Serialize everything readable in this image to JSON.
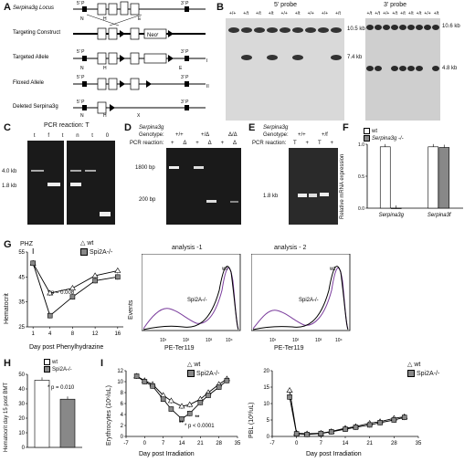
{
  "panels": {
    "A": {
      "label": "A",
      "rows": [
        {
          "name": "Serpina3g Locus",
          "five": "5' P",
          "three": "3' P"
        },
        {
          "name": "Targeting Construct"
        },
        {
          "name": "Targeted Allele",
          "five": "5' P",
          "three": "3' P"
        },
        {
          "name": "Floxed Allele",
          "five": "5' P",
          "three": "3' P"
        },
        {
          "name": "Deleted Serpina3g",
          "five": "5' P",
          "three": "3' P"
        }
      ],
      "neo": "Neoʳ",
      "site_N": "N",
      "site_E": "E",
      "site_H": "H",
      "site_X": "X",
      "roman_I": "I",
      "roman_II": "II"
    },
    "B": {
      "label": "B",
      "probe5": "5' probe",
      "probe3": "3' probe",
      "lanes5": [
        "+/+",
        "+/t",
        "+/t",
        "+/t",
        "+/+",
        "+/t",
        "+/+",
        "+/+",
        "+/t"
      ],
      "lanes3": [
        "+/t",
        "+/t",
        "+/+",
        "+/t",
        "+/t",
        "+/t",
        "+/t",
        "+/+",
        "+/t"
      ],
      "size_a": "10.5 kb",
      "size_b": "7.4 kb",
      "size_c": "10.6 kb",
      "size_d": "4.8 kb"
    },
    "C": {
      "label": "C",
      "title": "PCR reaction: T",
      "lanes": [
        "t",
        "f",
        "t",
        "n",
        "t",
        "0"
      ],
      "m1": "4.0 kb",
      "m2": "1.8 kb"
    },
    "D": {
      "label": "D",
      "gene": "Serpina3g",
      "genotype_label": "Genotype:",
      "genotypes": [
        "+/+",
        "+/Δ",
        "Δ/Δ"
      ],
      "pcr_label": "PCR reaction:",
      "reactions": [
        "+",
        "Δ",
        "+",
        "Δ",
        "+",
        "Δ"
      ],
      "m1": "1800 bp",
      "m2": "200 bp"
    },
    "E": {
      "label": "E",
      "gene": "Serpina3g",
      "genotype_label": "Genotype:",
      "genotypes": [
        "+/+",
        "+/f"
      ],
      "pcr_label": "PCR reaction:",
      "reactions": [
        "T",
        "+",
        "T",
        "+"
      ],
      "m1": "1.8 kb"
    },
    "F": {
      "label": "F",
      "legend": [
        "wt",
        "Serpina3g -/-"
      ],
      "ylabel": "Relative mRNA expression",
      "xcats": [
        "Serpina3g",
        "Serpina3f"
      ]
    },
    "G": {
      "label": "G",
      "phz": "PHZ",
      "legend": [
        "wt",
        "Spi2A-/-"
      ],
      "ylabel": "Hematocrit",
      "xlabel": "Day post Phenylhydrazine",
      "pval": "* p = 0.008",
      "flow_titles": [
        "analysis -1",
        "analysis - 2"
      ],
      "flow_ylabel": "Events",
      "flow_xlabel": "PE-Ter119",
      "flow_wt": "wt",
      "flow_ko": "Spi2A-/-"
    },
    "H": {
      "label": "H",
      "legend": [
        "wt",
        "Spi2A-/-"
      ],
      "ylabel": "Hematocrit day 15 post BMT",
      "pval": "* p = 0.010"
    },
    "I": {
      "label": "I",
      "legend": [
        "wt",
        "Spi2A-/-"
      ],
      "ylabel1": "Erythrocytes (10⁶/uL)",
      "ylabel2": "PBL (10³/uL)",
      "xlabel": "Day post Irradiation",
      "pval": "* p < 0.0001",
      "stars": "**"
    }
  },
  "chart_data": [
    {
      "type": "bar",
      "panel": "F",
      "categories": [
        "Serpina3g",
        "Serpina3f"
      ],
      "series": [
        {
          "name": "wt",
          "values": [
            0.96,
            0.96
          ]
        },
        {
          "name": "Serpina3g -/-",
          "values": [
            0.0,
            0.95
          ]
        }
      ],
      "ylabel": "Relative mRNA expression",
      "ylim": [
        0,
        1.0
      ],
      "yticks": [
        0.0,
        0.5,
        1.0
      ]
    },
    {
      "type": "line",
      "panel": "G",
      "x": [
        1,
        4,
        8,
        12,
        16
      ],
      "series": [
        {
          "name": "wt",
          "values": [
            50.5,
            38.5,
            40.5,
            45.5,
            47.5
          ]
        },
        {
          "name": "Spi2A-/-",
          "values": [
            50.5,
            29.5,
            37.0,
            43.5,
            45.0
          ]
        }
      ],
      "xlabel": "Day post Phenylhydrazine",
      "ylabel": "Hematocrit",
      "xticks": [
        1,
        4,
        8,
        12,
        16
      ],
      "yticks": [
        25,
        35,
        45,
        55
      ],
      "ylim": [
        25,
        55
      ],
      "xlim": [
        0,
        17
      ]
    },
    {
      "type": "bar",
      "panel": "H",
      "categories": [
        "wt",
        "Spi2A-/-"
      ],
      "values": [
        46,
        33
      ],
      "ylabel": "Hematocrit day 15 post BMT",
      "ylim": [
        0,
        50
      ],
      "yticks": [
        0,
        10,
        20,
        30,
        40,
        50
      ]
    },
    {
      "type": "line",
      "panel": "I-erythrocytes",
      "x": [
        -3,
        0,
        3,
        7,
        10,
        14,
        17,
        21,
        24,
        28,
        31
      ],
      "series": [
        {
          "name": "wt",
          "values": [
            11,
            10.2,
            9.5,
            7.5,
            6.5,
            5.5,
            5.8,
            6.8,
            8.0,
            9.5,
            10.5
          ]
        },
        {
          "name": "Spi2A-/-",
          "values": [
            11,
            10.0,
            9.2,
            6.8,
            5.0,
            3.2,
            4.2,
            6.2,
            7.5,
            9.0,
            10.2
          ]
        }
      ],
      "xlabel": "Day post Irradiation",
      "ylabel": "Erythrocytes (10⁶/uL)",
      "xticks": [
        -7,
        0,
        7,
        14,
        21,
        28,
        35
      ],
      "yticks": [
        0,
        2,
        4,
        6,
        8,
        10,
        12
      ],
      "ylim": [
        0,
        12
      ],
      "xlim": [
        -7,
        35
      ]
    },
    {
      "type": "line",
      "panel": "I-PBL",
      "x": [
        -2,
        0,
        3,
        7,
        10,
        14,
        17,
        21,
        24,
        28,
        31
      ],
      "series": [
        {
          "name": "wt",
          "values": [
            14,
            1.0,
            0.8,
            1.0,
            1.5,
            2.5,
            3.0,
            4.0,
            4.5,
            5.5,
            6.0
          ]
        },
        {
          "name": "Spi2A-/-",
          "values": [
            12,
            0.8,
            0.6,
            0.9,
            1.4,
            2.2,
            2.8,
            3.5,
            4.2,
            5.0,
            5.8
          ]
        }
      ],
      "xlabel": "Day post Irradiation",
      "ylabel": "PBL (10³/uL)",
      "xticks": [
        -7,
        0,
        7,
        14,
        21,
        28,
        35
      ],
      "yticks": [
        0,
        5,
        10,
        15,
        20
      ],
      "ylim": [
        0,
        20
      ],
      "xlim": [
        -7,
        35
      ]
    }
  ],
  "colors": {
    "wt": "#ffffff",
    "ko": "#888888",
    "gel": "#1a1a1a",
    "purple": "#7a3c9c"
  }
}
